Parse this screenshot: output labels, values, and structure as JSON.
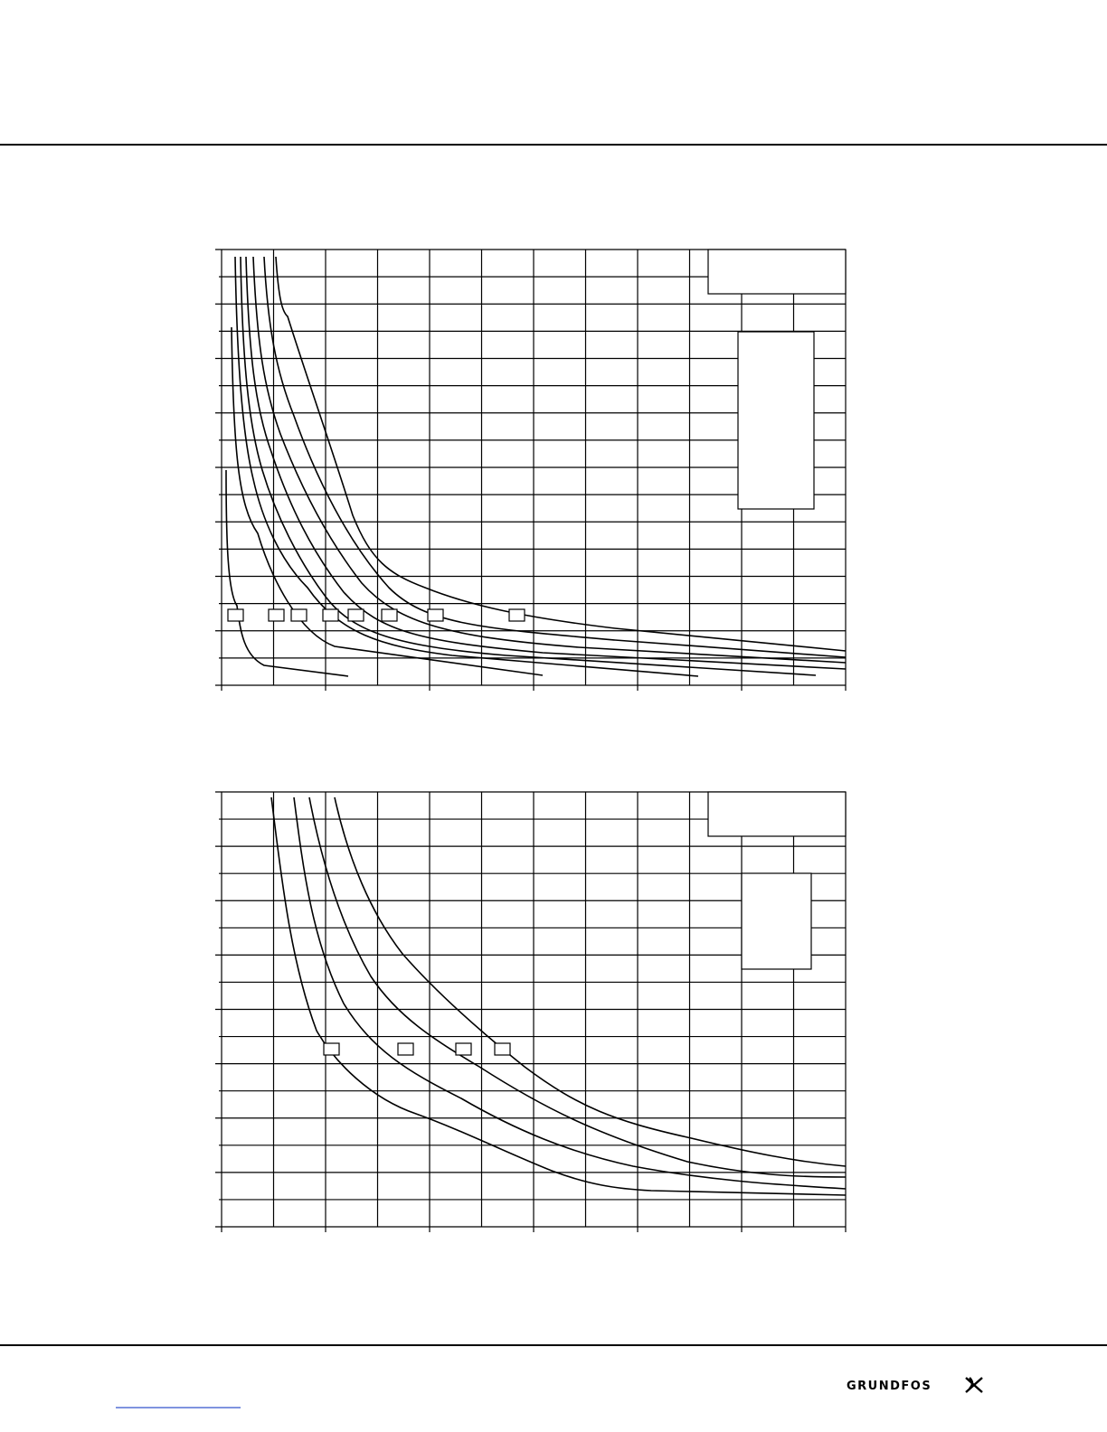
{
  "footer": {
    "logo": "GRUNDFOS"
  }
}
